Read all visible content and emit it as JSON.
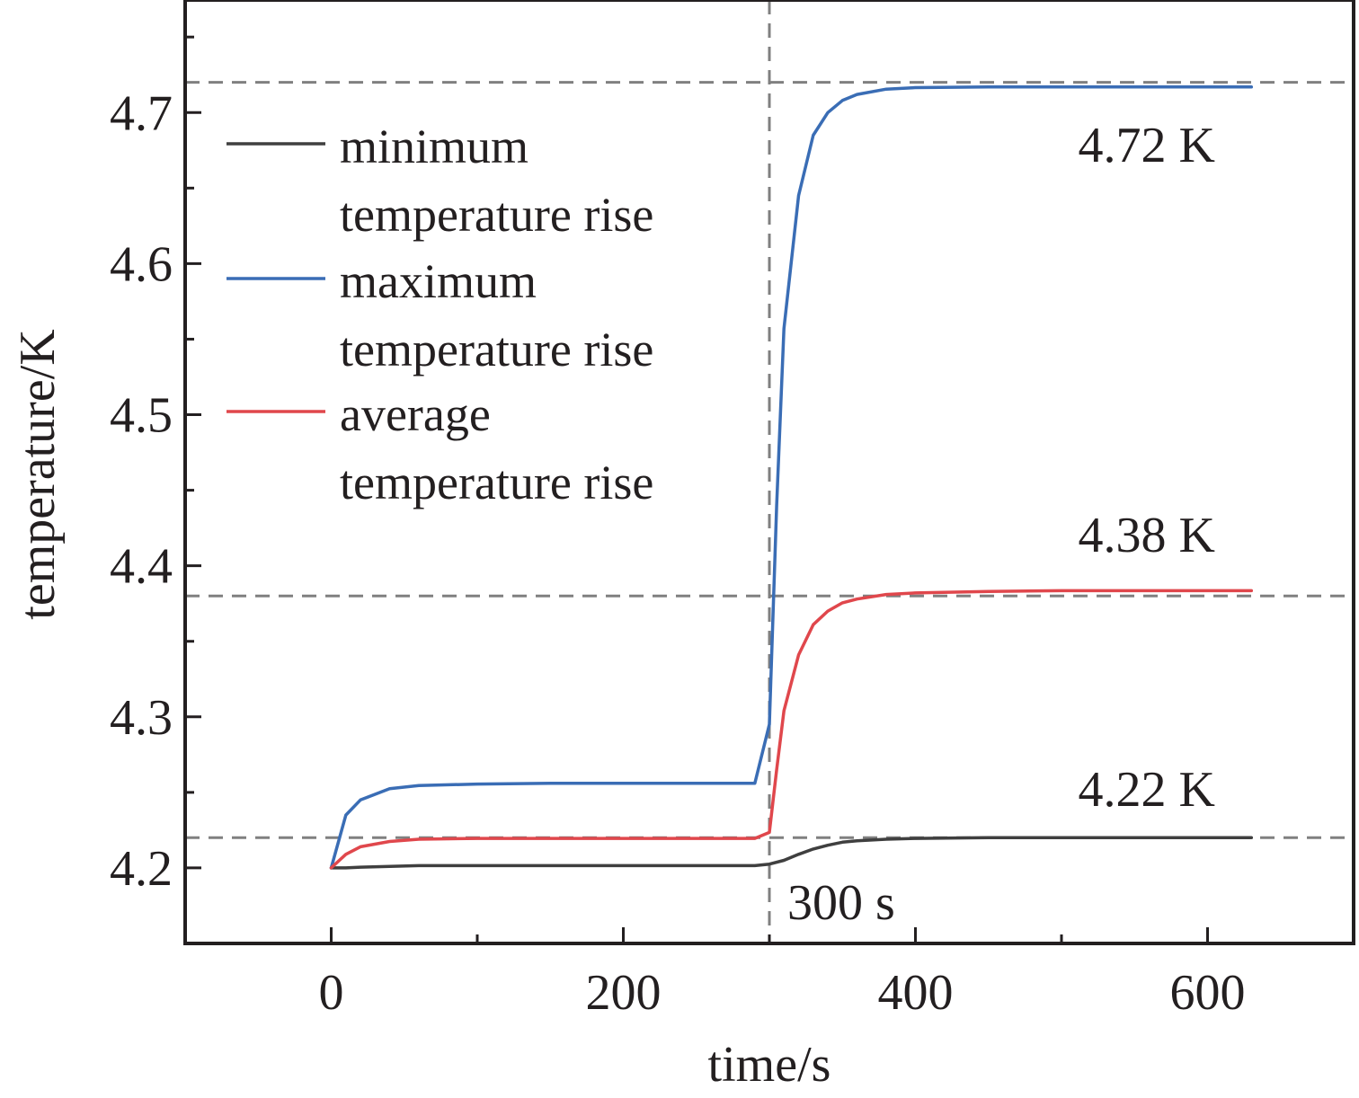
{
  "chart_data": {
    "type": "line",
    "title": "",
    "xlabel": "time/s",
    "ylabel": "temperature/K",
    "xlim": [
      -100,
      700
    ],
    "ylim": [
      4.15,
      4.7745
    ],
    "x_ticks": [
      0,
      200,
      400,
      600
    ],
    "x_tick_labels": [
      "0",
      "200",
      "400",
      "600"
    ],
    "y_ticks": [
      4.2,
      4.3,
      4.4,
      4.5,
      4.6,
      4.7
    ],
    "y_tick_labels": [
      "4.2",
      "4.3",
      "4.4",
      "4.5",
      "4.6",
      "4.7"
    ],
    "grid": false,
    "legend_position": "top-left",
    "series": [
      {
        "name": "minimum temperature rise",
        "color": "#3f3f3f",
        "x": [
          0,
          10,
          20,
          40,
          60,
          100,
          150,
          200,
          250,
          290,
          300,
          310,
          320,
          330,
          340,
          350,
          360,
          380,
          400,
          450,
          500,
          550,
          600,
          630
        ],
        "y": [
          4.2,
          4.2,
          4.2005,
          4.201,
          4.2015,
          4.2015,
          4.2015,
          4.2015,
          4.2015,
          4.2015,
          4.2025,
          4.205,
          4.209,
          4.2125,
          4.215,
          4.217,
          4.218,
          4.219,
          4.2195,
          4.22,
          4.22,
          4.22,
          4.22,
          4.22
        ]
      },
      {
        "name": "maximum temperature rise",
        "color": "#3a6db5",
        "x": [
          0,
          10,
          20,
          40,
          60,
          100,
          150,
          200,
          250,
          290,
          300,
          305,
          310,
          320,
          330,
          340,
          350,
          360,
          380,
          400,
          450,
          500,
          550,
          600,
          630
        ],
        "y": [
          4.2,
          4.235,
          4.245,
          4.2525,
          4.2545,
          4.2555,
          4.256,
          4.256,
          4.256,
          4.256,
          4.295,
          4.44,
          4.557,
          4.645,
          4.685,
          4.7,
          4.708,
          4.712,
          4.7155,
          4.7165,
          4.717,
          4.717,
          4.717,
          4.717,
          4.717
        ]
      },
      {
        "name": "average temperature rise",
        "color": "#e0474c",
        "x": [
          0,
          10,
          20,
          40,
          60,
          100,
          150,
          200,
          250,
          290,
          300,
          305,
          310,
          320,
          330,
          340,
          350,
          360,
          380,
          400,
          450,
          500,
          550,
          600,
          630
        ],
        "y": [
          4.2,
          4.209,
          4.214,
          4.2175,
          4.219,
          4.2195,
          4.2195,
          4.2195,
          4.2195,
          4.2195,
          4.2235,
          4.265,
          4.304,
          4.341,
          4.361,
          4.37,
          4.3755,
          4.378,
          4.381,
          4.382,
          4.383,
          4.3835,
          4.3835,
          4.3835,
          4.3835
        ]
      }
    ],
    "reference_lines": {
      "horizontal": [
        4.72,
        4.38,
        4.22
      ],
      "vertical": [
        300
      ]
    },
    "annotations": [
      "4.72 K",
      "4.38 K",
      "4.22 K",
      "300 s"
    ]
  }
}
